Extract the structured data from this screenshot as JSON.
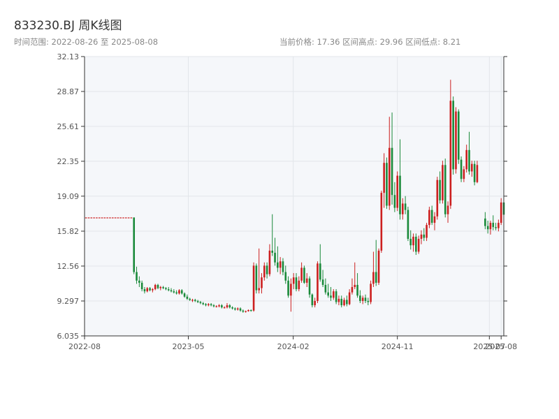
{
  "header": {
    "title": "833230.BJ 周K线图",
    "range_label": "时间范围: 2022-08-26 至 2025-08-08",
    "stats_label": "当前价格: 17.36  区间高点: 29.96  区间低点: 8.21"
  },
  "colors": {
    "up": "#cc1f1f",
    "down": "#1a8a3a",
    "plot_bg": "#f5f7fa",
    "grid": "#e2e6ea",
    "axis": "#333333"
  },
  "chart_data": {
    "type": "candlestick",
    "title": "833230.BJ 周K线图",
    "y_ticks": [
      6.035,
      9.297,
      12.56,
      15.82,
      19.09,
      22.35,
      25.61,
      28.87,
      32.13
    ],
    "y_tick_labels": [
      "6.035",
      "9.297",
      "12.56",
      "15.82",
      "19.09",
      "22.35",
      "25.61",
      "28.87",
      "32.13"
    ],
    "ylim": [
      6.035,
      32.13
    ],
    "x_ticks": [
      "2022-08-01",
      "2023-05-01",
      "2024-02-01",
      "2024-11-01",
      "2025-07-01",
      "2025-08-01"
    ],
    "x_tick_labels": [
      "2022-08",
      "2023-05",
      "2024-02",
      "2024-11",
      "2025-07",
      "2025-08"
    ],
    "xlim": [
      "2022-08-01",
      "2025-08-08"
    ],
    "grid": true,
    "stats": {
      "current": 17.36,
      "high": 29.96,
      "low": 8.21
    },
    "candles": [
      [
        "2022-08-05",
        17.1,
        17.1,
        17.1,
        17.1
      ],
      [
        "2022-08-12",
        17.1,
        17.1,
        17.1,
        17.1
      ],
      [
        "2022-08-19",
        17.1,
        17.1,
        17.1,
        17.1
      ],
      [
        "2022-08-26",
        17.1,
        17.1,
        17.1,
        17.1
      ],
      [
        "2022-09-02",
        17.1,
        17.1,
        17.1,
        17.1
      ],
      [
        "2022-09-09",
        17.1,
        17.1,
        17.1,
        17.1
      ],
      [
        "2022-09-16",
        17.1,
        17.1,
        17.1,
        17.1
      ],
      [
        "2022-09-23",
        17.1,
        17.1,
        17.1,
        17.1
      ],
      [
        "2022-09-30",
        17.1,
        17.1,
        17.1,
        17.1
      ],
      [
        "2022-10-07",
        17.1,
        17.1,
        17.1,
        17.1
      ],
      [
        "2022-10-14",
        17.1,
        17.1,
        17.1,
        17.1
      ],
      [
        "2022-10-21",
        17.1,
        17.1,
        17.1,
        17.1
      ],
      [
        "2022-10-28",
        17.1,
        17.1,
        17.1,
        17.1
      ],
      [
        "2022-11-04",
        17.1,
        17.1,
        17.1,
        17.1
      ],
      [
        "2022-11-11",
        17.1,
        17.1,
        17.1,
        17.1
      ],
      [
        "2022-11-18",
        17.1,
        17.1,
        17.1,
        17.1
      ],
      [
        "2022-11-25",
        17.1,
        17.1,
        17.1,
        17.1
      ],
      [
        "2022-12-02",
        17.1,
        17.1,
        17.1,
        17.1
      ],
      [
        "2022-12-09",
        17.1,
        17.1,
        11.8,
        12.0
      ],
      [
        "2022-12-16",
        12.0,
        12.5,
        10.9,
        11.2
      ],
      [
        "2022-12-23",
        11.2,
        11.6,
        10.6,
        11.0
      ],
      [
        "2022-12-30",
        11.0,
        11.2,
        10.2,
        10.4
      ],
      [
        "2023-01-06",
        10.4,
        10.6,
        10.0,
        10.2
      ],
      [
        "2023-01-13",
        10.2,
        10.6,
        10.1,
        10.5
      ],
      [
        "2023-01-20",
        10.5,
        10.6,
        10.2,
        10.3
      ],
      [
        "2023-01-27",
        10.3,
        10.5,
        10.1,
        10.4
      ],
      [
        "2023-02-03",
        10.4,
        10.9,
        10.3,
        10.8
      ],
      [
        "2023-02-10",
        10.8,
        10.9,
        10.4,
        10.5
      ],
      [
        "2023-02-17",
        10.5,
        10.7,
        10.3,
        10.6
      ],
      [
        "2023-02-24",
        10.6,
        10.7,
        10.4,
        10.5
      ],
      [
        "2023-03-03",
        10.5,
        10.6,
        10.3,
        10.4
      ],
      [
        "2023-03-10",
        10.4,
        10.6,
        10.2,
        10.3
      ],
      [
        "2023-03-17",
        10.3,
        10.5,
        10.1,
        10.2
      ],
      [
        "2023-03-24",
        10.2,
        10.4,
        10.0,
        10.1
      ],
      [
        "2023-03-31",
        10.1,
        10.3,
        9.9,
        10.0
      ],
      [
        "2023-04-07",
        10.0,
        10.4,
        9.9,
        10.3
      ],
      [
        "2023-04-14",
        10.3,
        10.4,
        9.9,
        10.0
      ],
      [
        "2023-04-21",
        10.0,
        10.1,
        9.6,
        9.7
      ],
      [
        "2023-04-28",
        9.7,
        9.9,
        9.4,
        9.5
      ],
      [
        "2023-05-05",
        9.5,
        9.6,
        9.3,
        9.4
      ],
      [
        "2023-05-12",
        9.4,
        9.5,
        9.2,
        9.4
      ],
      [
        "2023-05-19",
        9.4,
        9.5,
        9.2,
        9.3
      ],
      [
        "2023-05-26",
        9.3,
        9.4,
        9.1,
        9.2
      ],
      [
        "2023-06-02",
        9.2,
        9.3,
        9.0,
        9.1
      ],
      [
        "2023-06-09",
        9.1,
        9.2,
        8.9,
        9.0
      ],
      [
        "2023-06-16",
        9.0,
        9.1,
        8.8,
        8.9
      ],
      [
        "2023-06-23",
        8.9,
        9.1,
        8.8,
        9.0
      ],
      [
        "2023-06-30",
        9.0,
        9.1,
        8.8,
        8.9
      ],
      [
        "2023-07-07",
        8.9,
        9.0,
        8.7,
        8.8
      ],
      [
        "2023-07-14",
        8.8,
        8.9,
        8.7,
        8.8
      ],
      [
        "2023-07-21",
        8.8,
        9.0,
        8.7,
        8.9
      ],
      [
        "2023-07-28",
        8.9,
        9.0,
        8.6,
        8.7
      ],
      [
        "2023-08-04",
        8.7,
        8.8,
        8.6,
        8.7
      ],
      [
        "2023-08-11",
        8.7,
        9.1,
        8.6,
        8.9
      ],
      [
        "2023-08-18",
        8.9,
        9.0,
        8.6,
        8.7
      ],
      [
        "2023-08-25",
        8.7,
        8.8,
        8.5,
        8.6
      ],
      [
        "2023-09-01",
        8.6,
        8.7,
        8.4,
        8.5
      ],
      [
        "2023-09-08",
        8.5,
        8.7,
        8.4,
        8.6
      ],
      [
        "2023-09-15",
        8.6,
        8.7,
        8.3,
        8.4
      ],
      [
        "2023-09-22",
        8.4,
        8.5,
        8.2,
        8.3
      ],
      [
        "2023-09-29",
        8.3,
        8.4,
        8.21,
        8.35
      ],
      [
        "2023-10-06",
        8.35,
        8.5,
        8.3,
        8.45
      ],
      [
        "2023-10-13",
        8.45,
        8.5,
        8.3,
        8.4
      ],
      [
        "2023-10-20",
        8.4,
        12.9,
        8.3,
        12.6
      ],
      [
        "2023-10-27",
        12.6,
        12.8,
        10.0,
        10.3
      ],
      [
        "2023-11-03",
        10.3,
        14.2,
        10.0,
        10.5
      ],
      [
        "2023-11-10",
        10.5,
        11.9,
        10.0,
        11.5
      ],
      [
        "2023-11-17",
        11.5,
        12.9,
        11.2,
        12.6
      ],
      [
        "2023-11-24",
        12.6,
        12.9,
        11.4,
        11.8
      ],
      [
        "2023-12-01",
        11.8,
        14.6,
        11.6,
        14.0
      ],
      [
        "2023-12-08",
        14.0,
        17.4,
        13.5,
        13.8
      ],
      [
        "2023-12-15",
        13.8,
        15.2,
        12.6,
        12.9
      ],
      [
        "2023-12-22",
        12.9,
        14.4,
        12.0,
        12.4
      ],
      [
        "2023-12-29",
        12.4,
        13.4,
        11.8,
        13.0
      ],
      [
        "2024-01-05",
        13.0,
        13.3,
        11.7,
        12.0
      ],
      [
        "2024-01-12",
        12.0,
        12.6,
        10.9,
        11.2
      ],
      [
        "2024-01-19",
        11.2,
        11.6,
        9.6,
        9.8
      ],
      [
        "2024-01-26",
        9.8,
        11.4,
        8.3,
        10.9
      ],
      [
        "2024-02-02",
        10.9,
        11.9,
        10.4,
        11.5
      ],
      [
        "2024-02-09",
        11.5,
        11.9,
        10.2,
        10.4
      ],
      [
        "2024-02-16",
        10.4,
        11.6,
        10.2,
        11.2
      ],
      [
        "2024-02-23",
        11.2,
        12.9,
        11.0,
        12.4
      ],
      [
        "2024-03-01",
        12.4,
        12.6,
        10.9,
        11.0
      ],
      [
        "2024-03-08",
        11.0,
        11.9,
        10.6,
        11.4
      ],
      [
        "2024-03-15",
        11.4,
        11.6,
        9.6,
        9.9
      ],
      [
        "2024-03-22",
        9.9,
        10.0,
        8.7,
        8.9
      ],
      [
        "2024-03-29",
        8.9,
        9.6,
        8.7,
        9.3
      ],
      [
        "2024-04-05",
        9.3,
        13.0,
        9.1,
        12.8
      ],
      [
        "2024-04-12",
        12.8,
        14.6,
        11.1,
        11.3
      ],
      [
        "2024-04-19",
        11.3,
        12.2,
        10.6,
        10.8
      ],
      [
        "2024-04-26",
        10.8,
        11.4,
        9.9,
        10.1
      ],
      [
        "2024-05-03",
        10.1,
        10.9,
        9.6,
        9.8
      ],
      [
        "2024-05-10",
        9.8,
        10.6,
        9.3,
        9.6
      ],
      [
        "2024-05-17",
        9.6,
        10.4,
        9.4,
        10.2
      ],
      [
        "2024-05-24",
        10.2,
        10.4,
        9.0,
        9.2
      ],
      [
        "2024-05-31",
        9.2,
        9.8,
        8.9,
        9.5
      ],
      [
        "2024-06-07",
        9.5,
        9.8,
        8.7,
        8.9
      ],
      [
        "2024-06-14",
        8.9,
        9.6,
        8.8,
        9.4
      ],
      [
        "2024-06-21",
        9.4,
        9.8,
        8.8,
        9.0
      ],
      [
        "2024-06-28",
        9.0,
        10.4,
        8.9,
        10.1
      ],
      [
        "2024-07-05",
        10.1,
        11.4,
        9.9,
        10.6
      ],
      [
        "2024-07-12",
        10.6,
        12.9,
        10.4,
        10.8
      ],
      [
        "2024-07-19",
        10.8,
        11.9,
        9.6,
        9.8
      ],
      [
        "2024-07-26",
        9.8,
        10.3,
        9.1,
        9.3
      ],
      [
        "2024-08-02",
        9.3,
        9.8,
        9.0,
        9.6
      ],
      [
        "2024-08-09",
        9.6,
        9.9,
        9.1,
        9.3
      ],
      [
        "2024-08-16",
        9.3,
        9.6,
        8.9,
        9.2
      ],
      [
        "2024-08-23",
        9.2,
        11.2,
        9.0,
        10.9
      ],
      [
        "2024-08-30",
        10.9,
        13.9,
        10.6,
        12.0
      ],
      [
        "2024-09-06",
        12.0,
        15.0,
        10.7,
        11.0
      ],
      [
        "2024-09-13",
        11.0,
        14.2,
        10.8,
        14.0
      ],
      [
        "2024-09-20",
        14.0,
        19.6,
        13.8,
        19.4
      ],
      [
        "2024-09-27",
        19.4,
        23.1,
        18.0,
        22.2
      ],
      [
        "2024-10-04",
        22.2,
        22.7,
        17.9,
        18.2
      ],
      [
        "2024-10-11",
        18.2,
        26.5,
        17.8,
        23.6
      ],
      [
        "2024-10-18",
        23.6,
        26.9,
        18.3,
        19.2
      ],
      [
        "2024-10-25",
        19.2,
        20.4,
        17.6,
        18.0
      ],
      [
        "2024-11-01",
        18.0,
        21.4,
        17.7,
        21.0
      ],
      [
        "2024-11-08",
        21.0,
        24.4,
        16.9,
        17.4
      ],
      [
        "2024-11-15",
        17.4,
        18.9,
        16.9,
        18.4
      ],
      [
        "2024-11-22",
        18.4,
        19.1,
        17.4,
        17.8
      ],
      [
        "2024-11-29",
        17.8,
        18.1,
        14.9,
        15.1
      ],
      [
        "2024-12-06",
        15.1,
        15.9,
        14.1,
        14.5
      ],
      [
        "2024-12-13",
        14.5,
        15.6,
        13.9,
        15.3
      ],
      [
        "2024-12-20",
        15.3,
        15.6,
        13.6,
        13.9
      ],
      [
        "2024-12-27",
        13.9,
        15.4,
        13.7,
        15.1
      ],
      [
        "2025-01-03",
        15.1,
        15.9,
        14.6,
        15.5
      ],
      [
        "2025-01-10",
        15.5,
        16.1,
        14.9,
        15.2
      ],
      [
        "2025-01-17",
        15.2,
        16.6,
        14.9,
        16.4
      ],
      [
        "2025-01-24",
        16.4,
        18.1,
        16.1,
        17.8
      ],
      [
        "2025-01-31",
        17.8,
        18.2,
        16.4,
        16.6
      ],
      [
        "2025-02-07",
        16.6,
        17.6,
        15.9,
        17.2
      ],
      [
        "2025-02-14",
        17.2,
        20.9,
        16.9,
        20.6
      ],
      [
        "2025-02-21",
        20.6,
        21.4,
        18.4,
        18.7
      ],
      [
        "2025-02-28",
        18.7,
        22.4,
        18.4,
        22.0
      ],
      [
        "2025-03-07",
        22.0,
        22.6,
        17.1,
        17.4
      ],
      [
        "2025-03-14",
        17.4,
        18.6,
        16.6,
        18.2
      ],
      [
        "2025-03-21",
        18.2,
        29.96,
        17.9,
        28.0
      ],
      [
        "2025-03-28",
        28.0,
        28.4,
        21.1,
        21.6
      ],
      [
        "2025-04-04",
        21.6,
        27.4,
        21.2,
        27.0
      ],
      [
        "2025-04-11",
        27.0,
        27.2,
        22.1,
        22.5
      ],
      [
        "2025-04-18",
        22.5,
        22.8,
        20.4,
        20.7
      ],
      [
        "2025-04-25",
        20.7,
        21.9,
        20.4,
        21.6
      ],
      [
        "2025-05-02",
        21.6,
        23.9,
        21.3,
        23.4
      ],
      [
        "2025-05-09",
        23.4,
        25.1,
        21.1,
        21.4
      ],
      [
        "2025-05-16",
        21.4,
        22.4,
        20.9,
        22.1
      ],
      [
        "2025-05-23",
        22.1,
        22.4,
        20.1,
        20.4
      ],
      [
        "2025-05-30",
        20.4,
        22.4,
        20.3,
        22.0
      ],
      [
        "2025-06-20",
        17.0,
        17.6,
        16.0,
        16.3
      ],
      [
        "2025-06-27",
        16.3,
        16.8,
        15.6,
        16.0
      ],
      [
        "2025-07-04",
        16.0,
        16.8,
        15.5,
        16.6
      ],
      [
        "2025-07-11",
        16.6,
        17.3,
        15.9,
        16.2
      ],
      [
        "2025-07-18",
        16.2,
        16.6,
        15.9,
        16.1
      ],
      [
        "2025-07-25",
        16.1,
        16.9,
        15.8,
        16.6
      ],
      [
        "2025-08-01",
        16.6,
        18.9,
        16.4,
        18.5
      ],
      [
        "2025-08-08",
        18.5,
        18.8,
        17.1,
        17.36
      ]
    ]
  }
}
